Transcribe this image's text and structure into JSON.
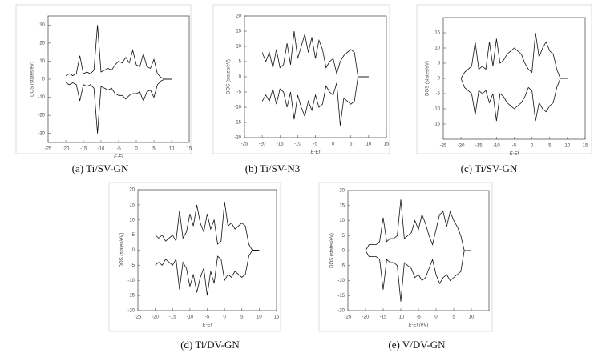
{
  "chart_data": [
    {
      "type": "line",
      "caption": "(a) Ti/SV-GN",
      "x_label": "E-Ef",
      "y_label": "DOS (states/eV)",
      "xlim": [
        -25,
        15
      ],
      "xticks": [
        -25,
        -20,
        -15,
        -10,
        -5,
        0,
        5,
        10,
        15
      ],
      "ylim": [
        -35,
        35
      ],
      "yticks": [
        -30,
        -20,
        -10,
        0,
        10,
        20,
        30
      ],
      "x": [
        -20,
        -19,
        -18,
        -17,
        -16,
        -15,
        -14,
        -13,
        -12,
        -11,
        -10,
        -9,
        -8,
        -7,
        -6,
        -5,
        -4,
        -3,
        -2,
        -1,
        0,
        1,
        2,
        3,
        4,
        5,
        6,
        7,
        8,
        9,
        10
      ],
      "series": [
        {
          "color": "#111111",
          "values": [
            2,
            3,
            2,
            3,
            13,
            3,
            4,
            3,
            5,
            30,
            4,
            5,
            6,
            5,
            8,
            10,
            9,
            12,
            9,
            16,
            8,
            7,
            14,
            7,
            6,
            11,
            3,
            1,
            0,
            0,
            0
          ]
        },
        {
          "color": "#111111",
          "values": [
            -2,
            -3,
            -2,
            -3,
            -12,
            -3,
            -4,
            -3,
            -5,
            -30,
            -4,
            -5,
            -6,
            -5,
            -8,
            -9,
            -9,
            -11,
            -9,
            -8,
            -8,
            -7,
            -12,
            -7,
            -6,
            -10,
            -3,
            -1,
            0,
            0,
            0
          ]
        }
      ]
    },
    {
      "type": "line",
      "caption": "(b) Ti/SV-N3",
      "x_label": "E-Ef",
      "y_label": "DOS (states/eV)",
      "xlim": [
        -25,
        15
      ],
      "xticks": [
        -25,
        -20,
        -15,
        -10,
        -5,
        0,
        5,
        10,
        15
      ],
      "ylim": [
        -20,
        20
      ],
      "yticks": [
        -20,
        -15,
        -10,
        -5,
        0,
        5,
        10,
        15,
        20
      ],
      "x": [
        -20,
        -19,
        -18,
        -17,
        -16,
        -15,
        -14,
        -13,
        -12,
        -11,
        -10,
        -9,
        -8,
        -7,
        -6,
        -5,
        -4,
        -3,
        -2,
        -1,
        0,
        1,
        2,
        3,
        4,
        5,
        6,
        7,
        8,
        9,
        10
      ],
      "series": [
        {
          "color": "#111111",
          "values": [
            8,
            5,
            8,
            3,
            9,
            3,
            4,
            11,
            4,
            15,
            6,
            10,
            14,
            8,
            13,
            6,
            12,
            9,
            3,
            5,
            6,
            1,
            5,
            7,
            8,
            9,
            8,
            0,
            0,
            0,
            0
          ]
        },
        {
          "color": "#111111",
          "values": [
            -8,
            -6,
            -8,
            -4,
            -9,
            -4,
            -5,
            -10,
            -5,
            -14,
            -6,
            -10,
            -13,
            -8,
            -11,
            -6,
            -10,
            -9,
            -3,
            -5,
            -6,
            -2,
            -16,
            -7,
            -8,
            -9,
            -8,
            0,
            0,
            0,
            0
          ]
        }
      ]
    },
    {
      "type": "line",
      "caption": "(c) Ti/SV-GN",
      "x_label": "E-Ef",
      "y_label": "DOS (states/eV)",
      "xlim": [
        -25,
        15
      ],
      "xticks": [
        -25,
        -20,
        -15,
        -10,
        -5,
        0,
        5,
        10,
        15
      ],
      "ylim": [
        -20,
        20
      ],
      "yticks": [
        -15,
        -10,
        -5,
        0,
        5,
        10,
        15
      ],
      "x": [
        -20,
        -19,
        -18,
        -17,
        -16,
        -15,
        -14,
        -13,
        -12,
        -11,
        -10,
        -9,
        -8,
        -7,
        -6,
        -5,
        -4,
        -3,
        -2,
        -1,
        0,
        1,
        2,
        3,
        4,
        5,
        6,
        7,
        8,
        9,
        10
      ],
      "series": [
        {
          "color": "#111111",
          "values": [
            0,
            2,
            3,
            4,
            12,
            3,
            4,
            3,
            12,
            4,
            13,
            5,
            6,
            8,
            9,
            10,
            9,
            8,
            5,
            3,
            2,
            15,
            7,
            10,
            12,
            9,
            8,
            3,
            0,
            0,
            0
          ]
        },
        {
          "color": "#111111",
          "values": [
            0,
            -3,
            -4,
            -5,
            -12,
            -4,
            -5,
            -4,
            -8,
            -5,
            -14,
            -5,
            -6,
            -8,
            -9,
            -10,
            -9,
            -8,
            -6,
            -3,
            -4,
            -14,
            -8,
            -10,
            -11,
            -9,
            -8,
            -3,
            0,
            0,
            0
          ]
        }
      ]
    },
    {
      "type": "line",
      "caption": "(d) Ti/DV-GN",
      "x_label": "E-Ef",
      "y_label": "DOS (states/eV)",
      "xlim": [
        -25,
        15
      ],
      "xticks": [
        -25,
        -20,
        -15,
        -10,
        -5,
        0,
        5,
        10,
        15
      ],
      "ylim": [
        -20,
        20
      ],
      "yticks": [
        -20,
        -15,
        -10,
        -5,
        0,
        5,
        10,
        15,
        20
      ],
      "x": [
        -20,
        -19,
        -18,
        -17,
        -16,
        -15,
        -14,
        -13,
        -12,
        -11,
        -10,
        -9,
        -8,
        -7,
        -6,
        -5,
        -4,
        -3,
        -2,
        -1,
        0,
        1,
        2,
        3,
        4,
        5,
        6,
        7,
        8,
        9,
        10
      ],
      "series": [
        {
          "color": "#111111",
          "values": [
            5,
            4,
            5,
            3,
            4,
            5,
            3,
            13,
            4,
            6,
            12,
            8,
            15,
            9,
            6,
            12,
            7,
            10,
            2,
            3,
            16,
            8,
            9,
            7,
            8,
            9,
            8,
            2,
            0,
            0,
            0
          ]
        },
        {
          "color": "#111111",
          "values": [
            -5,
            -4,
            -5,
            -3,
            -4,
            -5,
            -3,
            -13,
            -4,
            -6,
            -12,
            -8,
            -14,
            -9,
            -6,
            -15,
            -7,
            -11,
            -2,
            -3,
            -10,
            -8,
            -9,
            -7,
            -8,
            -9,
            -8,
            -2,
            0,
            0,
            0
          ]
        }
      ]
    },
    {
      "type": "line",
      "caption": "(e) V/DV-GN",
      "x_label": "E-Ef (eV)",
      "y_label": "DOS (states/eV)",
      "xlim": [
        -25,
        15
      ],
      "xticks": [
        -25,
        -20,
        -15,
        -10,
        -5,
        0,
        5,
        10
      ],
      "ylim": [
        -20,
        20
      ],
      "yticks": [
        -20,
        -15,
        -10,
        -5,
        0,
        5,
        10,
        15,
        20
      ],
      "x": [
        -20,
        -19,
        -18,
        -17,
        -16,
        -15,
        -14,
        -13,
        -12,
        -11,
        -10,
        -9,
        -8,
        -7,
        -6,
        -5,
        -4,
        -3,
        -2,
        -1,
        0,
        1,
        2,
        3,
        4,
        5,
        6,
        7,
        8,
        9,
        10
      ],
      "series": [
        {
          "color": "#111111",
          "values": [
            0,
            2,
            2,
            2,
            3,
            11,
            3,
            4,
            4,
            5,
            17,
            4,
            5,
            6,
            10,
            7,
            12,
            9,
            5,
            2,
            7,
            12,
            13,
            8,
            13,
            10,
            8,
            5,
            0,
            0,
            0
          ]
        },
        {
          "color": "#111111",
          "values": [
            0,
            -2,
            -2,
            -2,
            -3,
            -13,
            -3,
            -4,
            -4,
            -5,
            -17,
            -4,
            -5,
            -6,
            -9,
            -8,
            -10,
            -9,
            -6,
            -3,
            -8,
            -11,
            -9,
            -8,
            -10,
            -9,
            -8,
            -7,
            0,
            0,
            0
          ]
        }
      ]
    }
  ]
}
